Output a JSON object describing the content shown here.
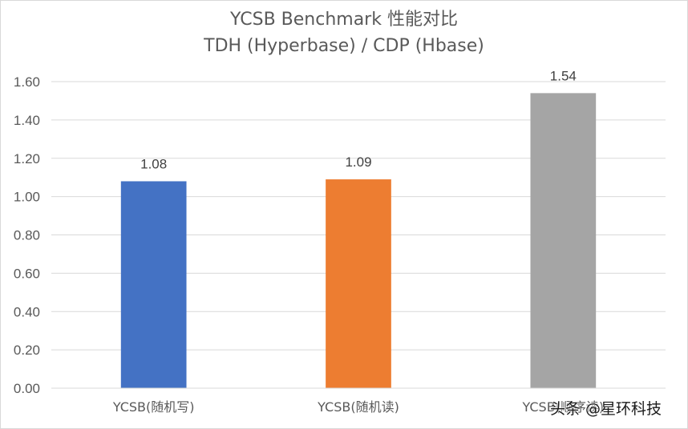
{
  "chart_data": {
    "type": "bar",
    "title": "YCSB Benchmark 性能对比",
    "subtitle": "TDH (Hyperbase) / CDP (Hbase)",
    "categories": [
      "YCSB(随机写)",
      "YCSB(随机读)",
      "YCSB(顺序读)"
    ],
    "values": [
      1.08,
      1.09,
      1.54
    ],
    "value_labels": [
      "1.08",
      "1.09",
      "1.54"
    ],
    "colors": [
      "#4472c4",
      "#ed7d31",
      "#a5a5a5"
    ],
    "ylim": [
      0,
      1.6
    ],
    "y_ticks": [
      "0.00",
      "0.20",
      "0.40",
      "0.60",
      "0.80",
      "1.00",
      "1.20",
      "1.40",
      "1.60"
    ],
    "grid": true,
    "legend": "none"
  },
  "watermark": {
    "text": "头条 @星环科技"
  }
}
